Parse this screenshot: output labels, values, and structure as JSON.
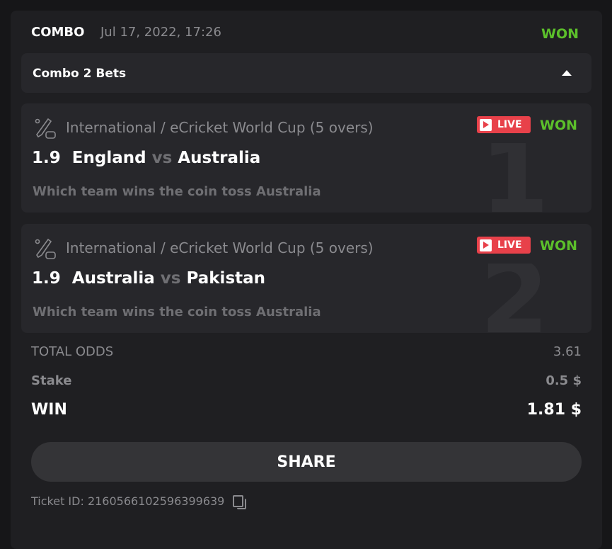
{
  "header": {
    "type": "COMBO",
    "date": "Jul 17, 2022, 17:26",
    "status": "WON"
  },
  "combo": {
    "label": "Combo 2 Bets",
    "expanded": true
  },
  "bets": [
    {
      "index": "1",
      "league": "International / eCricket World Cup (5 overs)",
      "live": "LIVE",
      "status": "WON",
      "odds": "1.9",
      "home": "England",
      "vs": "vs",
      "away": "Australia",
      "selection": "Which team wins the coin toss Australia",
      "icon": "cricket-esports-icon"
    },
    {
      "index": "2",
      "league": "International / eCricket World Cup (5 overs)",
      "live": "LIVE",
      "status": "WON",
      "odds": "1.9",
      "home": "Australia",
      "vs": "vs",
      "away": "Pakistan",
      "selection": "Which team wins the coin toss Australia",
      "icon": "cricket-esports-icon"
    }
  ],
  "summary": {
    "total_odds_label": "TOTAL ODDS",
    "total_odds": "3.61",
    "stake_label": "Stake",
    "stake": "0.5 $",
    "win_label": "WIN",
    "win": "1.81 $"
  },
  "share_label": "SHARE",
  "ticket": {
    "label": "Ticket ID: 2160566102596399639"
  },
  "colors": {
    "won": "#5cc02b",
    "live": "#e8414a"
  }
}
